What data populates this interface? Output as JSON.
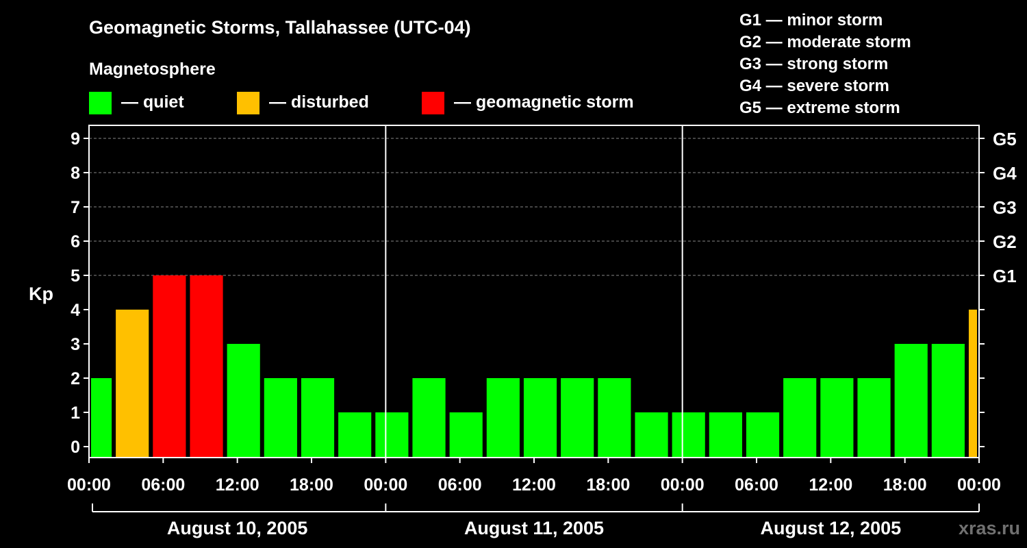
{
  "chart_data": {
    "type": "bar",
    "title": "Geomagnetic Storms, Tallahassee (UTC-04)",
    "ylabel": "Kp",
    "ylim": [
      0,
      9
    ],
    "yticks": [
      "0",
      "1",
      "2",
      "3",
      "4",
      "5",
      "6",
      "7",
      "8",
      "9"
    ],
    "grid": "dashed horizontal lines at Kp 5-9",
    "legend": {
      "title": "Magnetosphere",
      "items": [
        {
          "label": "— quiet",
          "color": "#00ff00"
        },
        {
          "label": "— disturbed",
          "color": "#ffc000"
        },
        {
          "label": "— geomagnetic storm",
          "color": "#ff0000"
        }
      ]
    },
    "storm_scale": [
      "G1 — minor storm",
      "G2 — moderate storm",
      "G3 — strong storm",
      "G4 — severe storm",
      "G5 — extreme storm"
    ],
    "right_axis": [
      {
        "label": "G1",
        "kp": 5
      },
      {
        "label": "G2",
        "kp": 6
      },
      {
        "label": "G3",
        "kp": 7
      },
      {
        "label": "G4",
        "kp": 8
      },
      {
        "label": "G5",
        "kp": 9
      }
    ],
    "x_ticks": [
      "00:00",
      "06:00",
      "12:00",
      "18:00",
      "00:00",
      "06:00",
      "12:00",
      "18:00",
      "00:00",
      "06:00",
      "12:00",
      "18:00",
      "00:00"
    ],
    "days": [
      "August 10, 2005",
      "August 11, 2005",
      "August 12, 2005"
    ],
    "x_start": "2005-08-10 00:00",
    "x_end": "2005-08-13 00:00",
    "bars": [
      {
        "start": "2005-08-10 00:00",
        "end": "2005-08-10 02:00",
        "kp": 2,
        "level": "quiet"
      },
      {
        "start": "2005-08-10 02:00",
        "end": "2005-08-10 05:00",
        "kp": 4,
        "level": "disturbed"
      },
      {
        "start": "2005-08-10 05:00",
        "end": "2005-08-10 08:00",
        "kp": 5,
        "level": "storm"
      },
      {
        "start": "2005-08-10 08:00",
        "end": "2005-08-10 11:00",
        "kp": 5,
        "level": "storm"
      },
      {
        "start": "2005-08-10 11:00",
        "end": "2005-08-10 14:00",
        "kp": 3,
        "level": "quiet"
      },
      {
        "start": "2005-08-10 14:00",
        "end": "2005-08-10 17:00",
        "kp": 2,
        "level": "quiet"
      },
      {
        "start": "2005-08-10 17:00",
        "end": "2005-08-10 20:00",
        "kp": 2,
        "level": "quiet"
      },
      {
        "start": "2005-08-10 20:00",
        "end": "2005-08-10 23:00",
        "kp": 1,
        "level": "quiet"
      },
      {
        "start": "2005-08-10 23:00",
        "end": "2005-08-11 02:00",
        "kp": 1,
        "level": "quiet"
      },
      {
        "start": "2005-08-11 02:00",
        "end": "2005-08-11 05:00",
        "kp": 2,
        "level": "quiet"
      },
      {
        "start": "2005-08-11 05:00",
        "end": "2005-08-11 08:00",
        "kp": 1,
        "level": "quiet"
      },
      {
        "start": "2005-08-11 08:00",
        "end": "2005-08-11 11:00",
        "kp": 2,
        "level": "quiet"
      },
      {
        "start": "2005-08-11 11:00",
        "end": "2005-08-11 14:00",
        "kp": 2,
        "level": "quiet"
      },
      {
        "start": "2005-08-11 14:00",
        "end": "2005-08-11 17:00",
        "kp": 2,
        "level": "quiet"
      },
      {
        "start": "2005-08-11 17:00",
        "end": "2005-08-11 20:00",
        "kp": 2,
        "level": "quiet"
      },
      {
        "start": "2005-08-11 20:00",
        "end": "2005-08-11 23:00",
        "kp": 1,
        "level": "quiet"
      },
      {
        "start": "2005-08-11 23:00",
        "end": "2005-08-12 02:00",
        "kp": 1,
        "level": "quiet"
      },
      {
        "start": "2005-08-12 02:00",
        "end": "2005-08-12 05:00",
        "kp": 1,
        "level": "quiet"
      },
      {
        "start": "2005-08-12 05:00",
        "end": "2005-08-12 08:00",
        "kp": 1,
        "level": "quiet"
      },
      {
        "start": "2005-08-12 08:00",
        "end": "2005-08-12 11:00",
        "kp": 2,
        "level": "quiet"
      },
      {
        "start": "2005-08-12 11:00",
        "end": "2005-08-12 14:00",
        "kp": 2,
        "level": "quiet"
      },
      {
        "start": "2005-08-12 14:00",
        "end": "2005-08-12 17:00",
        "kp": 2,
        "level": "quiet"
      },
      {
        "start": "2005-08-12 17:00",
        "end": "2005-08-12 20:00",
        "kp": 3,
        "level": "quiet"
      },
      {
        "start": "2005-08-12 20:00",
        "end": "2005-08-12 23:00",
        "kp": 3,
        "level": "quiet"
      },
      {
        "start": "2005-08-12 23:00",
        "end": "2005-08-13 00:00",
        "kp": 4,
        "level": "disturbed"
      }
    ],
    "colors": {
      "quiet": "#00ff00",
      "disturbed": "#ffc000",
      "storm": "#ff0000",
      "background": "#000000",
      "axis": "#ffffff",
      "grid": "#888888",
      "watermark": "#707070"
    }
  },
  "watermark": "xras.ru"
}
